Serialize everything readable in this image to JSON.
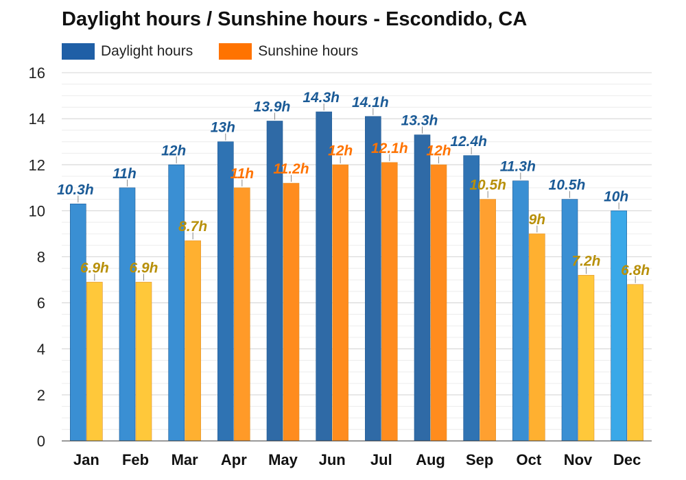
{
  "chart_data": {
    "type": "bar",
    "title": "Daylight hours / Sunshine hours - Escondido, CA",
    "categories": [
      "Jan",
      "Feb",
      "Mar",
      "Apr",
      "May",
      "Jun",
      "Jul",
      "Aug",
      "Sep",
      "Oct",
      "Nov",
      "Dec"
    ],
    "series": [
      {
        "name": "Daylight hours",
        "values": [
          10.3,
          11,
          12,
          13,
          13.9,
          14.3,
          14.1,
          13.3,
          12.4,
          11.3,
          10.5,
          10
        ],
        "labels": [
          "10.3h",
          "11h",
          "12h",
          "13h",
          "13.9h",
          "14.3h",
          "14.1h",
          "13.3h",
          "12.4h",
          "11.3h",
          "10.5h",
          "10h"
        ],
        "legend_color": "#1f5fa6",
        "colors": [
          "#3a8fd3",
          "#3a8fd3",
          "#3a8fd3",
          "#2f73b3",
          "#2f6aa6",
          "#2f6aa6",
          "#2f6aa6",
          "#2f6aa6",
          "#2f73b3",
          "#3a8fd3",
          "#3a8fd3",
          "#3aa8e8"
        ],
        "label_color": "#1a5a96"
      },
      {
        "name": "Sunshine hours",
        "values": [
          6.9,
          6.9,
          8.7,
          11,
          11.2,
          12,
          12.1,
          12,
          10.5,
          9,
          7.2,
          6.8
        ],
        "labels": [
          "6.9h",
          "6.9h",
          "8.7h",
          "11h",
          "11.2h",
          "12h",
          "12.1h",
          "12h",
          "10.5h",
          "9h",
          "7.2h",
          "6.8h"
        ],
        "legend_color": "#ff7300",
        "colors": [
          "#ffc83a",
          "#ffc83a",
          "#ffb030",
          "#ff9a28",
          "#ff8c1e",
          "#ff8c1e",
          "#ff8c1e",
          "#ff8c1e",
          "#ffa030",
          "#ffb030",
          "#ffc83a",
          "#ffc83a"
        ],
        "label_colors": [
          "#b8900a",
          "#b8900a",
          "#b8900a",
          "#ff7300",
          "#ff7300",
          "#ff7300",
          "#ff7300",
          "#ff7300",
          "#b8900a",
          "#b8900a",
          "#b8900a",
          "#b8900a"
        ]
      }
    ],
    "xlabel": "",
    "ylabel": "",
    "ylim": [
      0,
      16
    ],
    "yticks": [
      0,
      2,
      4,
      6,
      8,
      10,
      12,
      14,
      16
    ],
    "grid": true,
    "legend": "top-left"
  }
}
